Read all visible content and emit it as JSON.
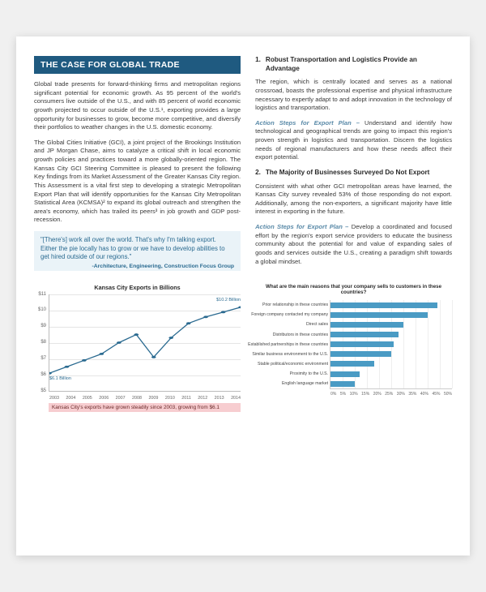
{
  "colors": {
    "header_bg": "#1f5a80",
    "accent": "#2a6a90",
    "quote_bg": "#eaf3f8",
    "caption_bg": "#f7cdd0",
    "bar_fill": "#4a9bc4",
    "line_stroke": "#2a6a90"
  },
  "left": {
    "title": "THE CASE FOR GLOBAL TRADE",
    "p1": "Global trade presents for forward-thinking firms and metropolitan regions significant potential for economic growth. As 95 percent of the world's consumers live outside of the U.S., and with 85 percent of world economic growth projected to occur outside of the U.S.¹, exporting provides a large opportunity for businesses to grow, become more competitive, and diversify their portfolios to weather changes in the U.S. domestic economy.",
    "p2": "The Global Cities Initiative (GCI), a joint project of the Brookings Institution and JP Morgan Chase, aims to catalyze a critical shift in local economic growth policies and practices toward a more globally-oriented region. The Kansas City GCI Steering Committee is pleased to present the following Key findings from its Market Assessment of the Greater Kansas City region. This Assessment is a vital first step to developing a strategic Metropolitan Export Plan that will identify opportunities for the Kansas City Metropolitan Statistical Area (KCMSA)² to expand its global outreach and strengthen the area's economy, which has trailed its peers³ in job growth and GDP post-recession.",
    "quote": "\"[There's] work all over the world.  That's why I'm talking export.  Either the pie locally has to grow or we have to develop abilities to get hired outside of our regions.\"",
    "quote_attrib": "-Architecture, Engineering, Construction Focus Group"
  },
  "right": {
    "h1_num": "1.",
    "h1": "Robust Transportation and Logistics Provide an Advantage",
    "p1": "The region, which is centrally located and serves as a national crossroad, boasts the professional expertise and physical infrastructure necessary to expertly adapt to and adopt innovation in the technology of logistics and transportation.",
    "a1_label": "Action Steps for Export Plan –",
    "a1": " Understand and identify how technological and geographical trends are going to impact this region's proven strength in logistics and transportation. Discern the logistics needs of regional manufacturers and how these needs affect their export potential.",
    "h2_num": "2.",
    "h2": "The Majority of Businesses Surveyed Do Not Export",
    "p2": "Consistent with what other GCI metropolitan areas have learned, the Kansas City survey revealed 53% of those responding do not export. Additionally, among the non-exporters, a significant majority have little interest in exporting in the future.",
    "a2_label": "Action Steps for Export Plan –",
    "a2": " Develop a coordinated and focused effort by the region's export service providers to educate the business community about the potential for and value of expanding sales of goods and services outside the U.S., creating a paradigm shift towards a global mindset."
  },
  "line_chart": {
    "type": "line",
    "title": "Kansas City Exports in Billions",
    "years": [
      "2003",
      "2004",
      "2005",
      "2006",
      "2007",
      "2008",
      "2009",
      "2010",
      "2011",
      "2012",
      "2013",
      "2014"
    ],
    "values": [
      6.1,
      6.5,
      6.9,
      7.3,
      8.0,
      8.5,
      7.1,
      8.3,
      9.2,
      9.6,
      9.9,
      10.2
    ],
    "ylim": [
      5,
      11
    ],
    "yticks": [
      "$5",
      "$6",
      "$7",
      "$8",
      "$9",
      "$10",
      "$11"
    ],
    "start_label": "$6.1 Billion",
    "end_label": "$10.2 Billion",
    "line_color": "#2a6a90",
    "marker_color": "#2a6a90",
    "grid_color": "#e5e5e5",
    "caption": "Kansas City's exports have grown steadily since 2003, growing from $6.1"
  },
  "bar_chart": {
    "type": "bar",
    "title": "What are the main reasons that your company sells to customers in these countries?",
    "categories": [
      "Prior relationship in these countries",
      "Foreign company contacted my company",
      "Direct sales",
      "Distributors in these countries",
      "Established partnerships in these countries",
      "Similar business environment to the U.S.",
      "Stable political/economic environment",
      "Proximity to the U.S.",
      "English language market"
    ],
    "values": [
      44,
      40,
      30,
      28,
      26,
      25,
      18,
      12,
      10
    ],
    "xlim": [
      0,
      50
    ],
    "xticks": [
      "0%",
      "5%",
      "10%",
      "15%",
      "20%",
      "25%",
      "30%",
      "35%",
      "40%",
      "45%",
      "50%"
    ],
    "bar_color": "#4a9bc4",
    "grid_color": "#eeeeee"
  }
}
